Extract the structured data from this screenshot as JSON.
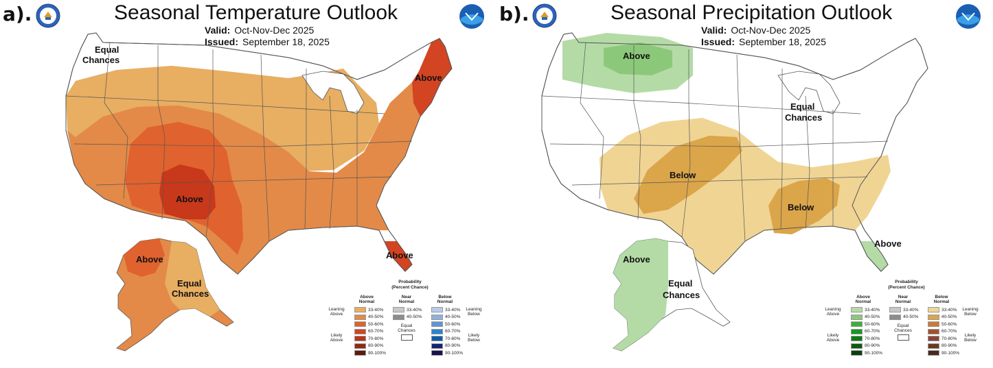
{
  "panels": {
    "a": {
      "letter": "a).",
      "title": "Seasonal Temperature Outlook",
      "valid_label": "Valid:",
      "valid_value": "Oct-Nov-Dec 2025",
      "issued_label": "Issued:",
      "issued_value": "September 18, 2025",
      "labels": {
        "equal_nw": "Equal",
        "equal_nw2": "Chances",
        "above_ne": "Above",
        "above_sw": "Above",
        "above_fl": "Above",
        "above_ak": "Above",
        "equal_ak": "Equal",
        "equal_ak2": "Chances"
      }
    },
    "b": {
      "letter": "b).",
      "title": "Seasonal Precipitation Outlook",
      "valid_label": "Valid:",
      "valid_value": "Oct-Nov-Dec 2025",
      "issued_label": "Issued:",
      "issued_value": "September 18, 2025",
      "labels": {
        "above_nw": "Above",
        "equal_ne": "Equal",
        "equal_ne2": "Chances",
        "below_sw": "Below",
        "below_se": "Below",
        "above_fl": "Above",
        "above_ak": "Above",
        "equal_ak": "Equal",
        "equal_ak2": "Chances"
      }
    }
  },
  "legend_a": {
    "title1": "Probability",
    "title2": "(Percent Chance)",
    "head_left1": "Above",
    "head_left2": "Normal",
    "head_mid1": "Near",
    "head_mid2": "Normal",
    "head_right1": "Below",
    "head_right2": "Normal",
    "leaning_above1": "Leaning",
    "leaning_above2": "Above",
    "likely_above1": "Likely",
    "likely_above2": "Above",
    "leaning_below1": "Leaning",
    "leaning_below2": "Below",
    "likely_below1": "Likely",
    "likely_below2": "Below",
    "ec1": "Equal",
    "ec2": "Chances",
    "left_rows": [
      "33-40%",
      "40-50%",
      "50-60%",
      "60-70%",
      "70-80%",
      "80-90%",
      "90-100%"
    ],
    "left_colors": [
      "#e8ae62",
      "#e38a48",
      "#e0622e",
      "#d24422",
      "#b9351a",
      "#8f2a13",
      "#5e1a0a"
    ],
    "mid_rows": [
      "33-40%",
      "40-50%"
    ],
    "mid_colors": [
      "#c8c8c8",
      "#8c8c8c"
    ],
    "right_rows": [
      "33-40%",
      "40-50%",
      "50-60%",
      "60-70%",
      "70-80%",
      "80-90%",
      "90-100%"
    ],
    "right_colors": [
      "#b9cbe8",
      "#8fb0dc",
      "#5e97d0",
      "#2a86cc",
      "#0f5ca8",
      "#15246e",
      "#1c0f4a"
    ]
  },
  "legend_b": {
    "title1": "Probability",
    "title2": "(Percent Chance)",
    "head_left1": "Above",
    "head_left2": "Normal",
    "head_mid1": "Near",
    "head_mid2": "Normal",
    "head_right1": "Below",
    "head_right2": "Normal",
    "leaning_above1": "Leaning",
    "leaning_above2": "Above",
    "likely_above1": "Likely",
    "likely_above2": "Above",
    "leaning_below1": "Leaning",
    "leaning_below2": "Below",
    "likely_below1": "Likely",
    "likely_below2": "Below",
    "ec1": "Equal",
    "ec2": "Chances",
    "left_rows": [
      "33-40%",
      "40-50%",
      "50-60%",
      "60-70%",
      "70-80%",
      "80-90%",
      "90-100%"
    ],
    "left_colors": [
      "#b4dba6",
      "#8cc87a",
      "#3fae3a",
      "#169a1e",
      "#0e7a14",
      "#0d5a10",
      "#0b3e0b"
    ],
    "mid_rows": [
      "33-40%",
      "40-50%"
    ],
    "mid_colors": [
      "#c8c8c8",
      "#8c8c8c"
    ],
    "right_rows": [
      "33-40%",
      "40-50%",
      "50-60%",
      "60-70%",
      "70-80%",
      "80-90%",
      "90-100%"
    ],
    "right_colors": [
      "#f0d494",
      "#dba54a",
      "#c9793a",
      "#a3512c",
      "#8c4238",
      "#6b3a1e",
      "#4a2a1e"
    ]
  },
  "colors": {
    "temp_lean": "#e8ae62",
    "temp_40": "#e38a48",
    "temp_50": "#e0622e",
    "temp_60": "#d24422",
    "temp_70": "#c8381a",
    "prcp_above_lean": "#b4dba6",
    "prcp_above_40": "#8cc87a",
    "prcp_below_lean": "#f0d494",
    "prcp_below_40": "#dba54a",
    "border": "#555555"
  }
}
